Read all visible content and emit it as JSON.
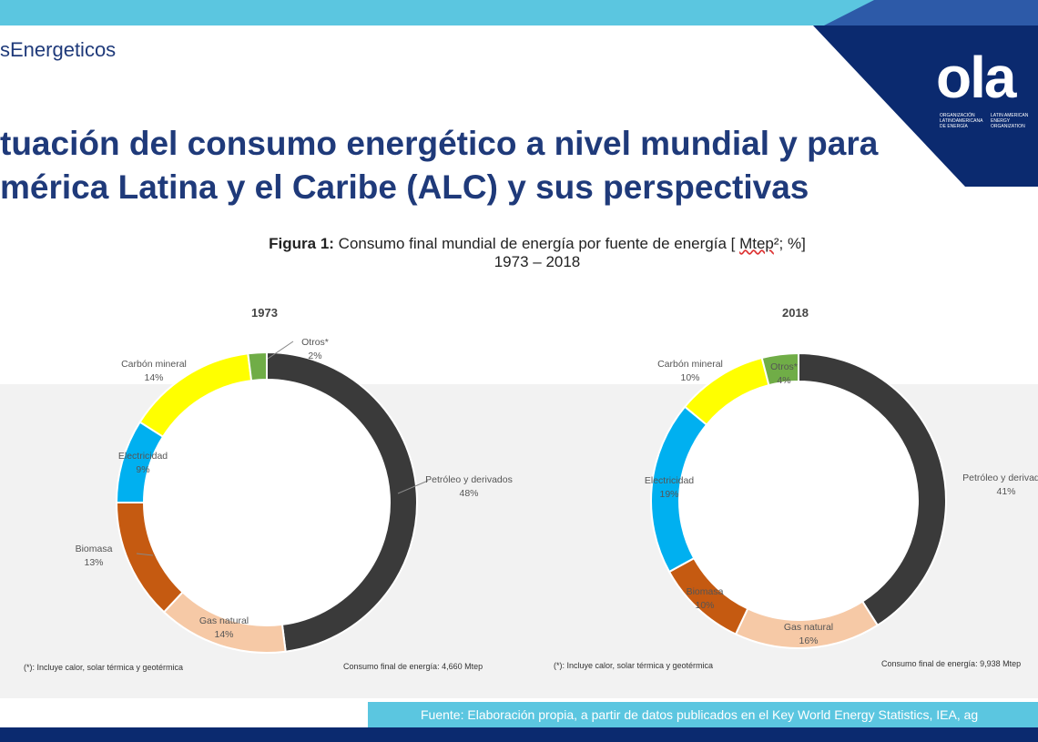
{
  "header": {
    "brand": "sEnergeticos",
    "title_line1": "tuación del consumo energético a nivel mundial y para",
    "title_line2": "mérica Latina y el Caribe (ALC) y sus perspectivas",
    "logo_text": "ola",
    "logo_caption_es": "ORGANIZACIÓN LATINOAMERICANA DE ENERGÍA",
    "logo_caption_en": "LATIN AMERICAN ENERGY ORGANIZATION"
  },
  "figure": {
    "caption_bold": "Figura 1:",
    "caption_rest": " Consumo final mundial de energía por fuente de energía [ ",
    "caption_unit": "Mtep",
    "caption_end": "²; %]",
    "caption_years": "1973 – 2018"
  },
  "chart_data": [
    {
      "type": "pie",
      "title": "1973",
      "labels": [
        "Petróleo y derivados",
        "Gas natural",
        "Biomasa",
        "Electricidad",
        "Carbón mineral",
        "Otros*"
      ],
      "values": [
        48,
        14,
        13,
        9,
        14,
        2
      ],
      "value_labels": [
        "48%",
        "14%",
        "13%",
        "9%",
        "14%",
        "2%"
      ],
      "colors": [
        "#3a3a3a",
        "#f6c9a6",
        "#c55a11",
        "#00b0f0",
        "#ffff00",
        "#70ad47"
      ],
      "footnote": "(*): Incluye calor, solar térmica y geotérmica",
      "total": "Consumo final de energía: 4,660 Mtep"
    },
    {
      "type": "pie",
      "title": "2018",
      "labels": [
        "Petróleo y derivados",
        "Gas natural",
        "Biomasa",
        "Electricidad",
        "Carbón mineral",
        "Otros*"
      ],
      "values": [
        41,
        16,
        10,
        19,
        10,
        4
      ],
      "value_labels": [
        "41%",
        "16%",
        "10%",
        "19%",
        "10%",
        "4%"
      ],
      "colors": [
        "#3a3a3a",
        "#f6c9a6",
        "#c55a11",
        "#00b0f0",
        "#ffff00",
        "#70ad47"
      ],
      "footnote": "(*): Incluye calor, solar térmica y geotérmica",
      "total": "Consumo final de energía: 9,938 Mtep"
    }
  ],
  "footer": {
    "source": "Fuente: Elaboración propia, a partir de datos publicados en el Key World Energy Statistics, IEA, ag"
  }
}
